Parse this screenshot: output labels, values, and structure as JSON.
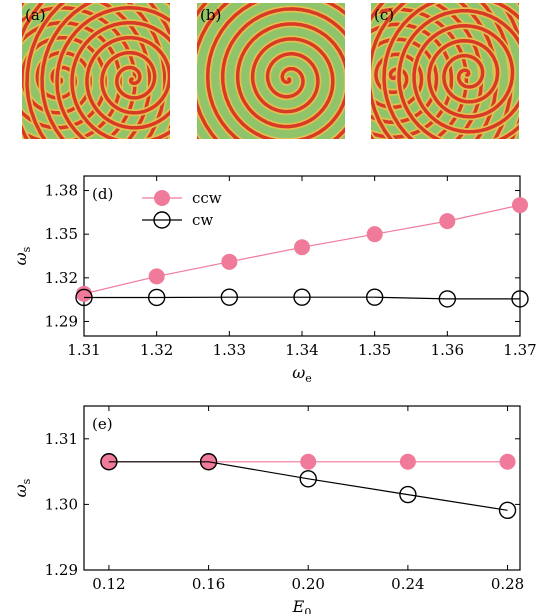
{
  "panels": [
    {
      "label": "(a)",
      "pattern": "symmetric-double-spiral"
    },
    {
      "label": "(b)",
      "pattern": "dominant-spiral-with-defect"
    },
    {
      "label": "(c)",
      "pattern": "asymmetric-double-spiral"
    }
  ],
  "colors": {
    "ccw": "#f07a9a",
    "cw": "#000000",
    "wave_base": "#8fc46a",
    "wave_mid": "#e0c050",
    "wave_peak": "#d83a26"
  },
  "chart_data": [
    {
      "type": "line",
      "panel_label": "(d)",
      "xlabel": "ω",
      "xlabel_sub": "e",
      "ylabel": "ω",
      "ylabel_sub": "s",
      "xlim": [
        1.31,
        1.37
      ],
      "ylim": [
        1.28,
        1.39
      ],
      "xticks": [
        1.31,
        1.32,
        1.33,
        1.34,
        1.35,
        1.36,
        1.37
      ],
      "xtick_labels": [
        "1.31",
        "1.32",
        "1.33",
        "1.34",
        "1.35",
        "1.36",
        "1.37"
      ],
      "yticks": [
        1.29,
        1.32,
        1.35,
        1.38
      ],
      "ytick_labels": [
        "1.29",
        "1.32",
        "1.35",
        "1.38"
      ],
      "legend_position": "top-left",
      "series": [
        {
          "name": "ccw",
          "marker": "filled-circle",
          "x": [
            1.31,
            1.32,
            1.33,
            1.34,
            1.35,
            1.36,
            1.37
          ],
          "y": [
            1.309,
            1.321,
            1.331,
            1.341,
            1.35,
            1.359,
            1.37
          ]
        },
        {
          "name": "cw",
          "marker": "open-circle",
          "x": [
            1.31,
            1.32,
            1.33,
            1.34,
            1.35,
            1.36,
            1.37
          ],
          "y": [
            1.3065,
            1.3065,
            1.3067,
            1.3067,
            1.3067,
            1.3055,
            1.3055
          ]
        }
      ]
    },
    {
      "type": "line",
      "panel_label": "(e)",
      "xlabel": "E",
      "xlabel_sub": "0",
      "ylabel": "ω",
      "ylabel_sub": "s",
      "xlim": [
        0.11,
        0.285
      ],
      "ylim": [
        1.29,
        1.315
      ],
      "xticks": [
        0.12,
        0.16,
        0.2,
        0.24,
        0.28
      ],
      "xtick_labels": [
        "0.12",
        "0.16",
        "0.20",
        "0.24",
        "0.28"
      ],
      "yticks": [
        1.29,
        1.3,
        1.31
      ],
      "ytick_labels": [
        "1.29",
        "1.30",
        "1.31"
      ],
      "series": [
        {
          "name": "ccw",
          "marker": "filled-circle",
          "x": [
            0.12,
            0.16,
            0.2,
            0.24,
            0.28
          ],
          "y": [
            1.3065,
            1.3065,
            1.3065,
            1.3065,
            1.3065
          ]
        },
        {
          "name": "cw",
          "marker": "open-circle",
          "x": [
            0.12,
            0.16,
            0.2,
            0.24,
            0.28
          ],
          "y": [
            1.3065,
            1.3065,
            1.3039,
            1.3015,
            1.2991
          ]
        }
      ]
    }
  ]
}
